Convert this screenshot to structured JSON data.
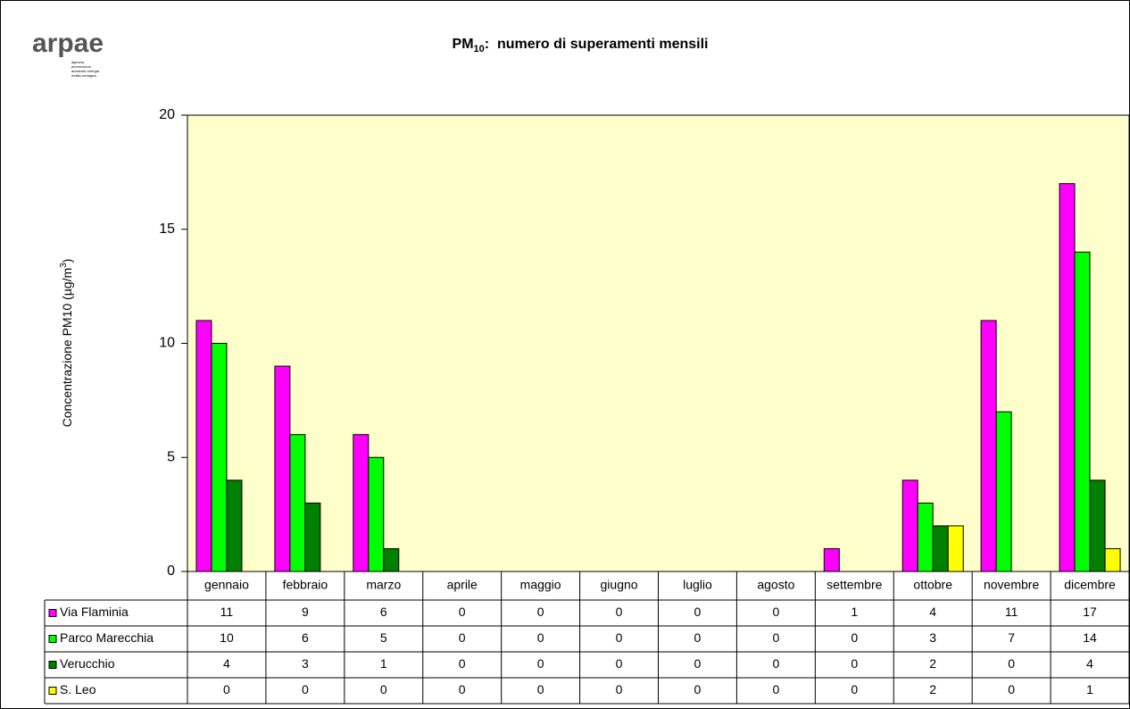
{
  "logo": {
    "name": "arpae",
    "tagline": [
      "agenzia",
      "prevenzione",
      "ambiente energia",
      "emilia-romagna"
    ]
  },
  "chart_data": {
    "type": "bar",
    "title": {
      "main": "PM",
      "sub": "10",
      "rest": ":  numero di superamenti mensili"
    },
    "y_label": {
      "main": "Concentrazione PM10 (µg/m",
      "sup": "3",
      "end": ")"
    },
    "categories": [
      "gennaio",
      "febbraio",
      "marzo",
      "aprile",
      "maggio",
      "giugno",
      "luglio",
      "agosto",
      "settembre",
      "ottobre",
      "novembre",
      "dicembre"
    ],
    "series": [
      {
        "name": "Via Flaminia",
        "color": "#ff00ff",
        "values": [
          11,
          9,
          6,
          0,
          0,
          0,
          0,
          0,
          1,
          4,
          11,
          17
        ]
      },
      {
        "name": "Parco Marecchia",
        "color": "#00ff00",
        "values": [
          10,
          6,
          5,
          0,
          0,
          0,
          0,
          0,
          0,
          3,
          7,
          14
        ]
      },
      {
        "name": "Verucchio",
        "color": "#008000",
        "values": [
          4,
          3,
          1,
          0,
          0,
          0,
          0,
          0,
          0,
          2,
          0,
          4
        ]
      },
      {
        "name": "S. Leo",
        "color": "#ffff00",
        "values": [
          0,
          0,
          0,
          0,
          0,
          0,
          0,
          0,
          0,
          2,
          0,
          1
        ]
      }
    ],
    "ylim": [
      0,
      20
    ],
    "yticks": [
      0,
      5,
      10,
      15,
      20
    ],
    "grid": false,
    "plot_background": "#ffffcc"
  }
}
